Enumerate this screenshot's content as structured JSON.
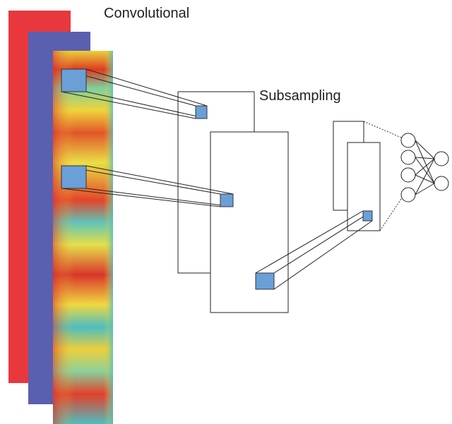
{
  "labels": {
    "convolutional": "Convolutional",
    "subsampling": "Subsampling"
  }
}
